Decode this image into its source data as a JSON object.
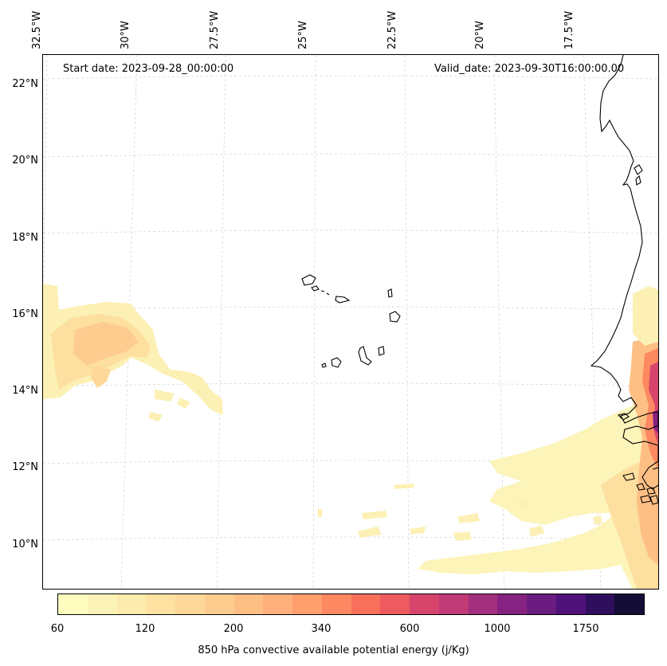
{
  "map": {
    "start_date": "Start date: 2023-09-28_00:00:00",
    "valid_date": "Valid_date: 2023-09-30T16:00:00.00",
    "lon_labels": [
      "32.5°W",
      "30°W",
      "27.5°W",
      "25°W",
      "22.5°W",
      "20°W",
      "17.5°W"
    ],
    "lat_labels": [
      "22°N",
      "20°N",
      "18°N",
      "16°N",
      "14°N",
      "12°N",
      "10°N"
    ],
    "extent": {
      "lon_min": -32.6,
      "lon_max": -15.2,
      "lat_min": 8.9,
      "lat_max": 22.8
    },
    "gridlines": true,
    "coastline_color": "#000000"
  },
  "colorbar": {
    "label": "850 hPa convective available potential energy (j/Kg)",
    "ticks": [
      "60",
      "120",
      "200",
      "340",
      "600",
      "1000",
      "1750"
    ],
    "colors": [
      "#fcfdbf",
      "#fcf4b6",
      "#fbebac",
      "#fde2a2",
      "#fdd898",
      "#fecc8f",
      "#febf84",
      "#feaf7c",
      "#fe9f6d",
      "#fc8961",
      "#f7705c",
      "#ed5a5f",
      "#d8456c",
      "#c03a76",
      "#a3307e",
      "#862281",
      "#6a1c81",
      "#4f127b",
      "#2f0f5d",
      "#140d35"
    ]
  },
  "legend": {
    "location": "bottom-center",
    "orientation": "horizontal"
  }
}
